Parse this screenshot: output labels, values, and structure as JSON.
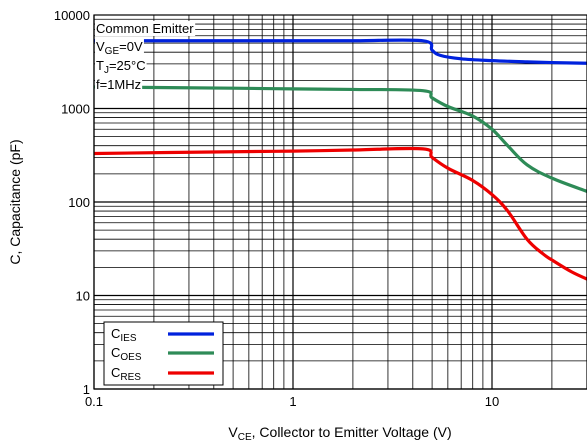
{
  "chart_data": {
    "type": "line",
    "xlabel": {
      "main": "V",
      "sub": "CE",
      "rest": ", Collector to Emitter Voltage (V)"
    },
    "ylabel": "C, Capacitance (pF)",
    "x_scale": "log",
    "y_scale": "log",
    "xlim": [
      0.1,
      30
    ],
    "ylim": [
      1,
      10000
    ],
    "grid": true,
    "x_ticks": [
      {
        "value": 0.1,
        "label": "0.1"
      },
      {
        "value": 1,
        "label": "1"
      },
      {
        "value": 10,
        "label": "10"
      }
    ],
    "y_ticks": [
      {
        "value": 1,
        "label": "1"
      },
      {
        "value": 10,
        "label": "10"
      },
      {
        "value": 100,
        "label": "100"
      },
      {
        "value": 1000,
        "label": "1000"
      },
      {
        "value": 10000,
        "label": "10000"
      }
    ],
    "conditions": [
      {
        "main": "Common Emitter",
        "sub": "",
        "rest": ""
      },
      {
        "main": "V",
        "sub": "GE",
        "rest": "=0V"
      },
      {
        "main": "T",
        "sub": "J",
        "rest": "=25°C"
      },
      {
        "main": "f=1MHz",
        "sub": "",
        "rest": ""
      }
    ],
    "legend_position": "bottom-left",
    "series": [
      {
        "name": "C",
        "sub": "IES",
        "color": "#0022dd",
        "x": [
          0.1,
          0.5,
          1,
          2,
          4.5,
          5,
          5.5,
          7,
          10,
          15,
          20,
          30
        ],
        "y": [
          5300,
          5300,
          5300,
          5300,
          5300,
          4200,
          3700,
          3400,
          3250,
          3150,
          3100,
          3050
        ]
      },
      {
        "name": "C",
        "sub": "OES",
        "color": "#2e8b57",
        "x": [
          0.1,
          0.5,
          1,
          2,
          4.5,
          5,
          6,
          8,
          10,
          12,
          15,
          20,
          30
        ],
        "y": [
          1700,
          1650,
          1620,
          1600,
          1550,
          1300,
          1050,
          830,
          600,
          400,
          250,
          180,
          130
        ]
      },
      {
        "name": "C",
        "sub": "RES",
        "color": "#ee0000",
        "x": [
          0.1,
          0.5,
          1,
          2,
          4.5,
          5,
          6,
          8,
          10,
          12,
          15,
          18,
          20,
          25,
          30
        ],
        "y": [
          330,
          345,
          350,
          360,
          370,
          300,
          230,
          170,
          120,
          80,
          40,
          28,
          24,
          18,
          15
        ]
      }
    ]
  }
}
